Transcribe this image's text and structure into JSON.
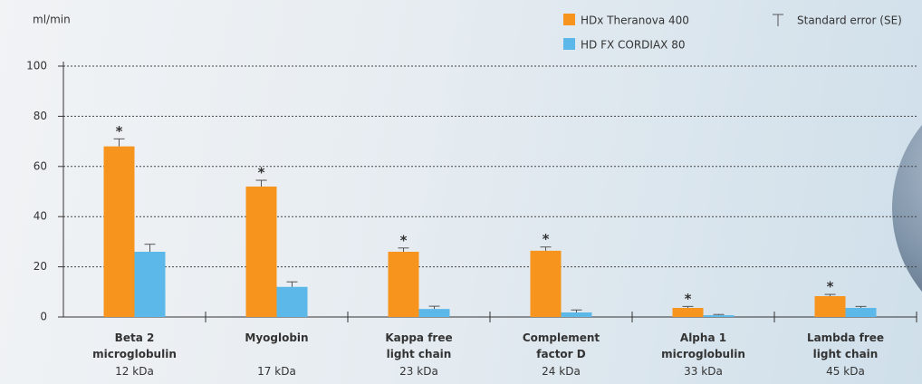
{
  "chart_data": {
    "type": "bar",
    "y_label": "ml/min",
    "categories": [
      "Beta 2 microglobulin",
      "Myoglobin",
      "Kappa free light chain",
      "Complement factor D",
      "Alpha 1 microglobulin",
      "Lambda free light chain"
    ],
    "category_sublabels": [
      "12 kDa",
      "17 kDa",
      "23 kDa",
      "24 kDa",
      "33 kDa",
      "45 kDa"
    ],
    "series": [
      {
        "name": "HDx Theranova 400",
        "color": "#f7941d",
        "values": [
          68,
          52,
          26,
          26.4,
          3.6,
          8.3
        ],
        "errors": [
          3,
          2.5,
          1.5,
          1.5,
          0.6,
          0.7
        ]
      },
      {
        "name": "HD FX CORDIAX 80",
        "color": "#5bb8e8",
        "values": [
          26,
          12,
          3.2,
          1.8,
          0.7,
          3.6
        ],
        "errors": [
          3,
          2,
          1.1,
          1,
          0.3,
          0.6
        ]
      }
    ],
    "significance_markers": [
      "*",
      "*",
      "*",
      "*",
      "*",
      "*"
    ],
    "error_bar_label": "Standard error (SE)",
    "ylim": [
      0,
      100
    ],
    "yticks": [
      0,
      20,
      40,
      60,
      80,
      100
    ],
    "grid": true
  }
}
